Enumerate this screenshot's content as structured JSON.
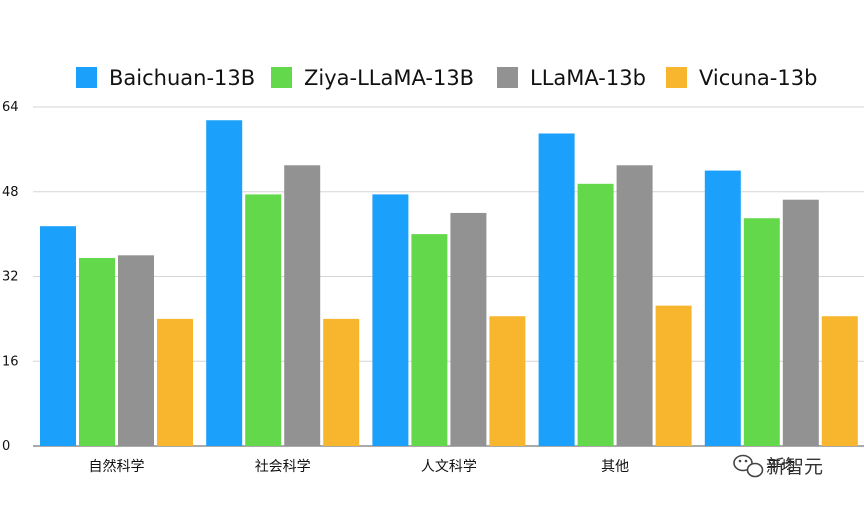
{
  "chart_data": {
    "type": "bar",
    "title": "",
    "xlabel": "",
    "ylabel": "",
    "ylim": [
      0,
      64
    ],
    "yticks": [
      0,
      16,
      32,
      48,
      64
    ],
    "grid": true,
    "legend_position": "top",
    "categories": [
      "自然科学",
      "社会科学",
      "人文科学",
      "其他",
      "平均"
    ],
    "series": [
      {
        "name": "Baichuan-13B",
        "color": "#1ba1fb",
        "values": [
          41.5,
          61.5,
          47.5,
          59,
          52
        ]
      },
      {
        "name": "Ziya-LLaMA-13B",
        "color": "#63d84a",
        "values": [
          35.5,
          47.5,
          40,
          49.5,
          43
        ]
      },
      {
        "name": "LLaMA-13b",
        "color": "#929292",
        "values": [
          36,
          53,
          44,
          53,
          46.5
        ]
      },
      {
        "name": "Vicuna-13b",
        "color": "#f7b62e",
        "values": [
          24,
          24,
          24.5,
          26.5,
          24.5
        ]
      }
    ]
  },
  "watermark": {
    "text": "新智元",
    "icon": "wechat-icon"
  }
}
